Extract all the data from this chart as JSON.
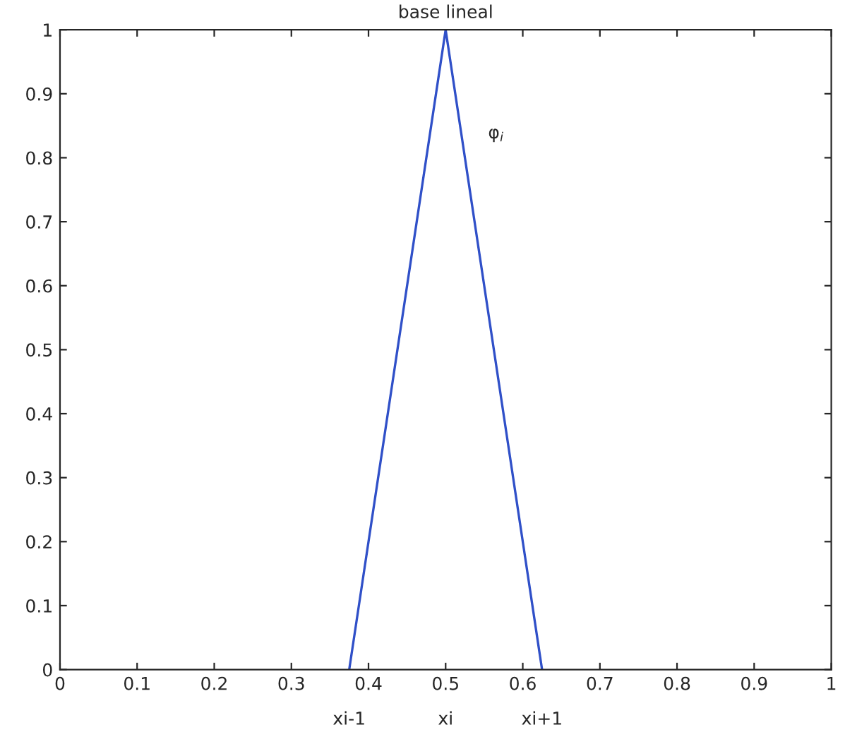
{
  "chart_data": {
    "type": "line",
    "title": "base lineal",
    "x": [
      0.375,
      0.5,
      0.625
    ],
    "series": [
      {
        "color": "#3050c8",
        "values": [
          0,
          1,
          0
        ]
      }
    ],
    "xlim": [
      0,
      1
    ],
    "xticks": [
      0,
      0.1,
      0.2,
      0.3,
      0.4,
      0.5,
      0.6,
      0.7,
      0.8,
      0.9,
      1
    ],
    "ylim": [
      0,
      1
    ],
    "yticks": [
      0,
      0.1,
      0.2,
      0.3,
      0.4,
      0.5,
      0.6,
      0.7,
      0.8,
      0.9,
      1
    ],
    "grid": false,
    "marker": "none",
    "line_style": "solid",
    "annotations": [
      "φ$_{i}$",
      "xi-1",
      "xi",
      "xi+1"
    ]
  }
}
